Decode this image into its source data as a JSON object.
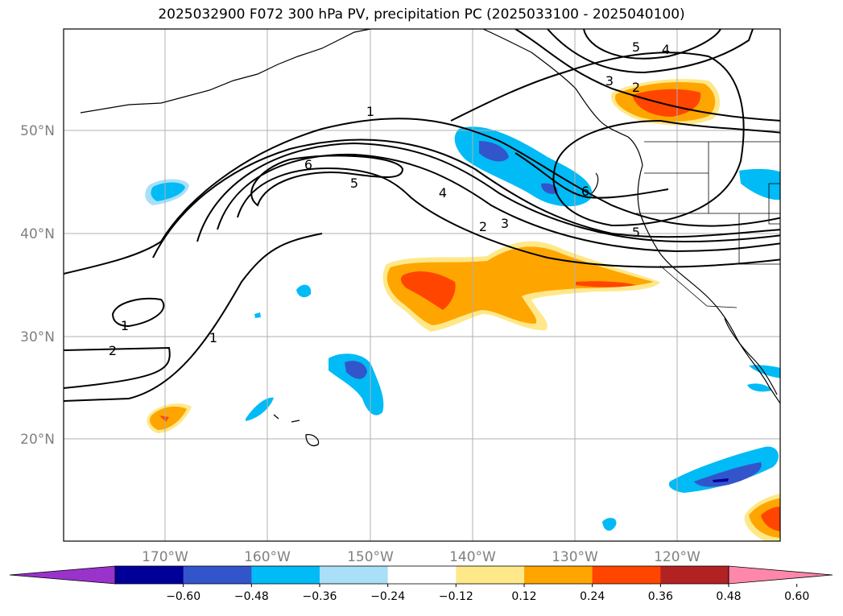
{
  "title": "2025032900 F072 300 hPa PV, precipitation PC (2025033100 - 2025040100)",
  "lat_labels": [
    "50°N",
    "40°N",
    "30°N",
    "20°N"
  ],
  "lon_labels": [
    "170°W",
    "160°W",
    "150°W",
    "140°W",
    "130°W",
    "120°W"
  ],
  "contour_labels": [
    "1",
    "6",
    "5",
    "4",
    "2",
    "3",
    "1",
    "2",
    "1",
    "5",
    "4",
    "3",
    "2",
    "6",
    "5"
  ],
  "colorbar": {
    "ticks": [
      "−0.60",
      "−0.48",
      "−0.36",
      "−0.24",
      "−0.12",
      "0.12",
      "0.24",
      "0.36",
      "0.48",
      "0.60"
    ],
    "colors": [
      "#9933cc",
      "#000099",
      "#3355cc",
      "#00bbf5",
      "#aadff8",
      "#ffffff",
      "#ffe88a",
      "#ffa500",
      "#ff4500",
      "#b22222",
      "#ff88aa"
    ]
  }
}
